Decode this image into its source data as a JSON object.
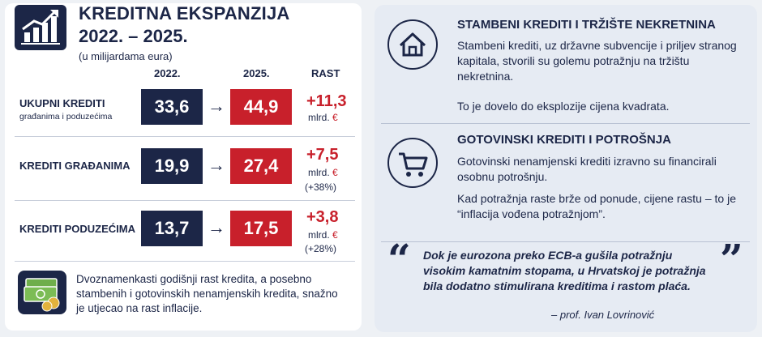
{
  "left": {
    "title_line1": "KREDITNA EKSPANZIJA",
    "title_line2": "2022. – 2025.",
    "subtitle": "(u milijardama eura)",
    "columns": {
      "c2022": "2022.",
      "c2025": "2025.",
      "growth": "RAST"
    },
    "rows": [
      {
        "label": "UKUPNI KREDITI",
        "sublabel": "građanima i poduzećima",
        "v2022": "33,6",
        "v2025": "44,9",
        "growth": "+11,3",
        "unit": "mlrd.",
        "euro": "€",
        "pct": ""
      },
      {
        "label": "KREDITI GRAĐANIMA",
        "sublabel": "",
        "v2022": "19,9",
        "v2025": "27,4",
        "growth": "+7,5",
        "unit": "mlrd.",
        "euro": "€",
        "pct": "(+38%)"
      },
      {
        "label": "KREDITI PODUZEĆIMA",
        "sublabel": "",
        "v2022": "13,7",
        "v2025": "17,5",
        "growth": "+3,8",
        "unit": "mlrd.",
        "euro": "€",
        "pct": "(+28%)"
      }
    ],
    "arrow": "→",
    "note": "Dvoznamenkasti godišnji rast kredita, a posebno stambenih i gotovinskih nenamjenskih kredita, snažno je utjecao na rast inflacije.",
    "icons": {
      "logo": "chart-growth-icon",
      "money": "money-stack-icon"
    }
  },
  "right": {
    "section1": {
      "heading": "STAMBENI KREDITI I TRŽIŠTE NEKRETNINA",
      "text1": "Stambeni krediti, uz državne subvencije i priljev stranog kapitala, stvorili su golemu potražnju na tržištu nekretnina.",
      "text2": "To je dovelo do eksplozije cijena kvadrata.",
      "icon": "house-icon"
    },
    "section2": {
      "heading": "GOTOVINSKI KREDITI I POTROŠNJA",
      "text1": "Gotovinski nenamjenski krediti izravno su financirali osobnu potrošnju.",
      "text2": "Kad potražnja raste brže od ponude, cijene rastu – to je “inflacija vođena potražnjom”.",
      "icon": "shopping-cart-icon"
    },
    "quote": {
      "open": "“",
      "close": "”",
      "text": "Dok je eurozona preko ECB-a gušila potražnju visokim kamatnim stopama, u Hrvatskoj je potražnja bila dodatno stimulirana kreditima i rastom plaća.",
      "author": "– prof. Ivan Lovrinović"
    }
  },
  "colors": {
    "navy": "#1c2647",
    "red": "#c8202b",
    "panel_right": "#e6ebf3"
  }
}
